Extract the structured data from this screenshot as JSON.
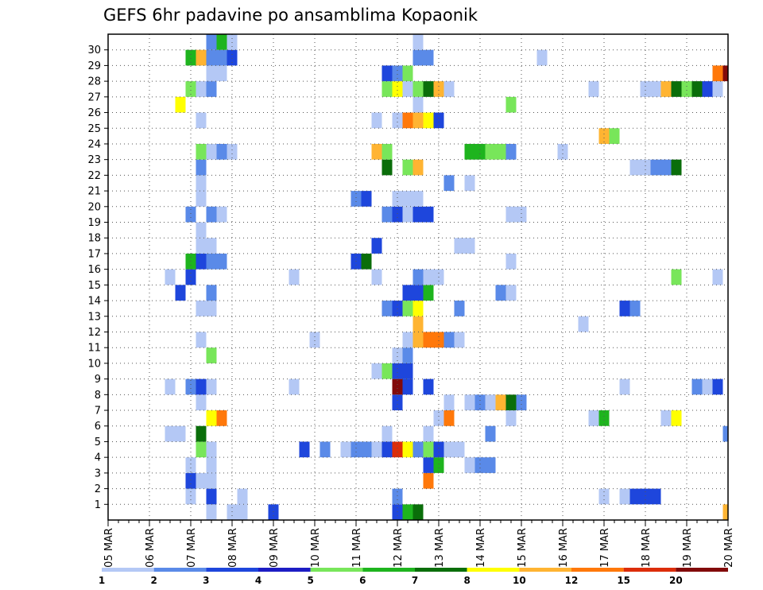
{
  "chart_data": {
    "type": "heatmap",
    "title": "GEFS 6hr padavine po ansamblima Kopaonik",
    "y_ticks": [
      1,
      2,
      3,
      4,
      5,
      6,
      7,
      8,
      9,
      10,
      11,
      12,
      13,
      14,
      15,
      16,
      17,
      18,
      19,
      20,
      21,
      22,
      23,
      24,
      25,
      26,
      27,
      28,
      29,
      30
    ],
    "x_ticks": [
      "05 MAR",
      "06 MAR",
      "07 MAR",
      "08 MAR",
      "09 MAR",
      "10 MAR",
      "11 MAR",
      "12 MAR",
      "13 MAR",
      "14 MAR",
      "15 MAR",
      "16 MAR",
      "17 MAR",
      "18 MAR",
      "19 MAR",
      "20 MAR"
    ],
    "x_range": [
      "05 MAR 00Z",
      "20 MAR 00Z"
    ],
    "y_range": [
      0,
      30
    ],
    "grid": true,
    "time_step_hours": 6,
    "colorbar": {
      "labels": [
        "1",
        "2",
        "3",
        "4",
        "5",
        "6",
        "7",
        "8",
        "10",
        "12",
        "15",
        "20"
      ],
      "colors": [
        "#b4c8f5",
        "#5a8ae8",
        "#1e46dc",
        "#1c1cc4",
        "#78e65a",
        "#1eb41e",
        "#0a6e0a",
        "#ffff00",
        "#ffb432",
        "#ff780a",
        "#dc2d0a",
        "#820a0a"
      ]
    },
    "cells": [
      {
        "t": "07 MAR 12Z",
        "m": 0,
        "c": 1
      },
      {
        "t": "08 MAR 00Z",
        "m": 0,
        "c": 1
      },
      {
        "t": "08 MAR 06Z",
        "m": 0,
        "c": 1
      },
      {
        "t": "09 MAR 00Z",
        "m": 0,
        "c": 3
      },
      {
        "t": "12 MAR 00Z",
        "m": 0,
        "c": 3
      },
      {
        "t": "12 MAR 06Z",
        "m": 0,
        "c": 6
      },
      {
        "t": "12 MAR 12Z",
        "m": 0,
        "c": 7
      },
      {
        "t": "20 MAR 00Z",
        "m": 0,
        "c": 9
      },
      {
        "t": "07 MAR 00Z",
        "m": 1,
        "c": 1
      },
      {
        "t": "07 MAR 12Z",
        "m": 1,
        "c": 3
      },
      {
        "t": "08 MAR 06Z",
        "m": 1,
        "c": 1
      },
      {
        "t": "12 MAR 00Z",
        "m": 1,
        "c": 2
      },
      {
        "t": "17 MAR 00Z",
        "m": 1,
        "c": 1
      },
      {
        "t": "17 MAR 12Z",
        "m": 1,
        "c": 1
      },
      {
        "t": "17 MAR 18Z",
        "m": 1,
        "c": 3
      },
      {
        "t": "18 MAR 00Z",
        "m": 1,
        "c": 3
      },
      {
        "t": "18 MAR 06Z",
        "m": 1,
        "c": 3
      },
      {
        "t": "07 MAR 00Z",
        "m": 2,
        "c": 3
      },
      {
        "t": "07 MAR 06Z",
        "m": 2,
        "c": 1
      },
      {
        "t": "07 MAR 12Z",
        "m": 2,
        "c": 1
      },
      {
        "t": "12 MAR 18Z",
        "m": 2,
        "c": 10
      },
      {
        "t": "07 MAR 00Z",
        "m": 3,
        "c": 1
      },
      {
        "t": "07 MAR 12Z",
        "m": 3,
        "c": 1
      },
      {
        "t": "12 MAR 18Z",
        "m": 3,
        "c": 3
      },
      {
        "t": "13 MAR 00Z",
        "m": 3,
        "c": 6
      },
      {
        "t": "13 MAR 18Z",
        "m": 3,
        "c": 1
      },
      {
        "t": "14 MAR 00Z",
        "m": 3,
        "c": 2
      },
      {
        "t": "14 MAR 06Z",
        "m": 3,
        "c": 2
      },
      {
        "t": "07 MAR 06Z",
        "m": 4,
        "c": 5
      },
      {
        "t": "07 MAR 12Z",
        "m": 4,
        "c": 1
      },
      {
        "t": "09 MAR 18Z",
        "m": 4,
        "c": 3
      },
      {
        "t": "10 MAR 06Z",
        "m": 4,
        "c": 2
      },
      {
        "t": "10 MAR 18Z",
        "m": 4,
        "c": 1
      },
      {
        "t": "11 MAR 00Z",
        "m": 4,
        "c": 2
      },
      {
        "t": "11 MAR 06Z",
        "m": 4,
        "c": 2
      },
      {
        "t": "11 MAR 12Z",
        "m": 4,
        "c": 1
      },
      {
        "t": "11 MAR 18Z",
        "m": 4,
        "c": 3
      },
      {
        "t": "12 MAR 00Z",
        "m": 4,
        "c": 11
      },
      {
        "t": "12 MAR 06Z",
        "m": 4,
        "c": 8
      },
      {
        "t": "12 MAR 12Z",
        "m": 4,
        "c": 2
      },
      {
        "t": "12 MAR 18Z",
        "m": 4,
        "c": 5
      },
      {
        "t": "13 MAR 00Z",
        "m": 4,
        "c": 3
      },
      {
        "t": "13 MAR 06Z",
        "m": 4,
        "c": 1
      },
      {
        "t": "13 MAR 12Z",
        "m": 4,
        "c": 1
      },
      {
        "t": "06 MAR 12Z",
        "m": 5,
        "c": 1
      },
      {
        "t": "06 MAR 18Z",
        "m": 5,
        "c": 1
      },
      {
        "t": "07 MAR 06Z",
        "m": 5,
        "c": 7
      },
      {
        "t": "11 MAR 18Z",
        "m": 5,
        "c": 1
      },
      {
        "t": "12 MAR 18Z",
        "m": 5,
        "c": 1
      },
      {
        "t": "14 MAR 06Z",
        "m": 5,
        "c": 2
      },
      {
        "t": "20 MAR 00Z",
        "m": 5,
        "c": 2
      },
      {
        "t": "07 MAR 12Z",
        "m": 6,
        "c": 8
      },
      {
        "t": "07 MAR 18Z",
        "m": 6,
        "c": 10
      },
      {
        "t": "13 MAR 00Z",
        "m": 6,
        "c": 1
      },
      {
        "t": "13 MAR 06Z",
        "m": 6,
        "c": 10
      },
      {
        "t": "14 MAR 18Z",
        "m": 6,
        "c": 1
      },
      {
        "t": "16 MAR 18Z",
        "m": 6,
        "c": 1
      },
      {
        "t": "17 MAR 00Z",
        "m": 6,
        "c": 6
      },
      {
        "t": "18 MAR 12Z",
        "m": 6,
        "c": 1
      },
      {
        "t": "18 MAR 18Z",
        "m": 6,
        "c": 8
      },
      {
        "t": "07 MAR 06Z",
        "m": 7,
        "c": 1
      },
      {
        "t": "12 MAR 00Z",
        "m": 7,
        "c": 3
      },
      {
        "t": "13 MAR 06Z",
        "m": 7,
        "c": 1
      },
      {
        "t": "13 MAR 18Z",
        "m": 7,
        "c": 1
      },
      {
        "t": "14 MAR 00Z",
        "m": 7,
        "c": 2
      },
      {
        "t": "14 MAR 06Z",
        "m": 7,
        "c": 1
      },
      {
        "t": "14 MAR 12Z",
        "m": 7,
        "c": 9
      },
      {
        "t": "14 MAR 18Z",
        "m": 7,
        "c": 7
      },
      {
        "t": "15 MAR 00Z",
        "m": 7,
        "c": 2
      },
      {
        "t": "06 MAR 12Z",
        "m": 8,
        "c": 1
      },
      {
        "t": "07 MAR 00Z",
        "m": 8,
        "c": 2
      },
      {
        "t": "07 MAR 06Z",
        "m": 8,
        "c": 3
      },
      {
        "t": "07 MAR 12Z",
        "m": 8,
        "c": 1
      },
      {
        "t": "09 MAR 12Z",
        "m": 8,
        "c": 1
      },
      {
        "t": "12 MAR 00Z",
        "m": 8,
        "c": 12
      },
      {
        "t": "12 MAR 06Z",
        "m": 8,
        "c": 3
      },
      {
        "t": "12 MAR 18Z",
        "m": 8,
        "c": 3
      },
      {
        "t": "17 MAR 12Z",
        "m": 8,
        "c": 1
      },
      {
        "t": "19 MAR 06Z",
        "m": 8,
        "c": 2
      },
      {
        "t": "19 MAR 12Z",
        "m": 8,
        "c": 1
      },
      {
        "t": "19 MAR 18Z",
        "m": 8,
        "c": 3
      },
      {
        "t": "11 MAR 12Z",
        "m": 9,
        "c": 1
      },
      {
        "t": "11 MAR 18Z",
        "m": 9,
        "c": 5
      },
      {
        "t": "12 MAR 00Z",
        "m": 9,
        "c": 3
      },
      {
        "t": "12 MAR 06Z",
        "m": 9,
        "c": 3
      },
      {
        "t": "07 MAR 12Z",
        "m": 10,
        "c": 5
      },
      {
        "t": "12 MAR 00Z",
        "m": 10,
        "c": 1
      },
      {
        "t": "12 MAR 06Z",
        "m": 10,
        "c": 2
      },
      {
        "t": "07 MAR 06Z",
        "m": 11,
        "c": 1
      },
      {
        "t": "10 MAR 00Z",
        "m": 11,
        "c": 1
      },
      {
        "t": "12 MAR 06Z",
        "m": 11,
        "c": 1
      },
      {
        "t": "12 MAR 12Z",
        "m": 11,
        "c": 9
      },
      {
        "t": "12 MAR 18Z",
        "m": 11,
        "c": 10
      },
      {
        "t": "13 MAR 00Z",
        "m": 11,
        "c": 10
      },
      {
        "t": "13 MAR 06Z",
        "m": 11,
        "c": 2
      },
      {
        "t": "13 MAR 12Z",
        "m": 11,
        "c": 1
      },
      {
        "t": "12 MAR 12Z",
        "m": 12,
        "c": 9
      },
      {
        "t": "16 MAR 12Z",
        "m": 12,
        "c": 1
      },
      {
        "t": "07 MAR 06Z",
        "m": 13,
        "c": 1
      },
      {
        "t": "07 MAR 12Z",
        "m": 13,
        "c": 1
      },
      {
        "t": "11 MAR 18Z",
        "m": 13,
        "c": 2
      },
      {
        "t": "12 MAR 00Z",
        "m": 13,
        "c": 3
      },
      {
        "t": "12 MAR 06Z",
        "m": 13,
        "c": 5
      },
      {
        "t": "12 MAR 12Z",
        "m": 13,
        "c": 8
      },
      {
        "t": "13 MAR 12Z",
        "m": 13,
        "c": 2
      },
      {
        "t": "17 MAR 12Z",
        "m": 13,
        "c": 3
      },
      {
        "t": "17 MAR 18Z",
        "m": 13,
        "c": 2
      },
      {
        "t": "06 MAR 18Z",
        "m": 14,
        "c": 3
      },
      {
        "t": "07 MAR 12Z",
        "m": 14,
        "c": 2
      },
      {
        "t": "12 MAR 06Z",
        "m": 14,
        "c": 3
      },
      {
        "t": "12 MAR 12Z",
        "m": 14,
        "c": 3
      },
      {
        "t": "12 MAR 18Z",
        "m": 14,
        "c": 6
      },
      {
        "t": "14 MAR 12Z",
        "m": 14,
        "c": 2
      },
      {
        "t": "14 MAR 18Z",
        "m": 14,
        "c": 1
      },
      {
        "t": "06 MAR 12Z",
        "m": 15,
        "c": 1
      },
      {
        "t": "07 MAR 00Z",
        "m": 15,
        "c": 3
      },
      {
        "t": "09 MAR 12Z",
        "m": 15,
        "c": 1
      },
      {
        "t": "11 MAR 12Z",
        "m": 15,
        "c": 1
      },
      {
        "t": "12 MAR 12Z",
        "m": 15,
        "c": 2
      },
      {
        "t": "12 MAR 18Z",
        "m": 15,
        "c": 1
      },
      {
        "t": "13 MAR 00Z",
        "m": 15,
        "c": 1
      },
      {
        "t": "18 MAR 18Z",
        "m": 15,
        "c": 5
      },
      {
        "t": "19 MAR 18Z",
        "m": 15,
        "c": 1
      },
      {
        "t": "07 MAR 00Z",
        "m": 16,
        "c": 6
      },
      {
        "t": "07 MAR 06Z",
        "m": 16,
        "c": 3
      },
      {
        "t": "07 MAR 12Z",
        "m": 16,
        "c": 2
      },
      {
        "t": "07 MAR 18Z",
        "m": 16,
        "c": 2
      },
      {
        "t": "11 MAR 00Z",
        "m": 16,
        "c": 3
      },
      {
        "t": "11 MAR 06Z",
        "m": 16,
        "c": 7
      },
      {
        "t": "14 MAR 18Z",
        "m": 16,
        "c": 1
      },
      {
        "t": "07 MAR 06Z",
        "m": 17,
        "c": 1
      },
      {
        "t": "07 MAR 12Z",
        "m": 17,
        "c": 1
      },
      {
        "t": "11 MAR 12Z",
        "m": 17,
        "c": 3
      },
      {
        "t": "13 MAR 12Z",
        "m": 17,
        "c": 1
      },
      {
        "t": "13 MAR 18Z",
        "m": 17,
        "c": 1
      },
      {
        "t": "07 MAR 06Z",
        "m": 18,
        "c": 1
      },
      {
        "t": "07 MAR 00Z",
        "m": 19,
        "c": 2
      },
      {
        "t": "07 MAR 12Z",
        "m": 19,
        "c": 2
      },
      {
        "t": "07 MAR 18Z",
        "m": 19,
        "c": 1
      },
      {
        "t": "11 MAR 18Z",
        "m": 19,
        "c": 2
      },
      {
        "t": "12 MAR 00Z",
        "m": 19,
        "c": 3
      },
      {
        "t": "12 MAR 06Z",
        "m": 19,
        "c": 1
      },
      {
        "t": "12 MAR 12Z",
        "m": 19,
        "c": 3
      },
      {
        "t": "12 MAR 18Z",
        "m": 19,
        "c": 3
      },
      {
        "t": "14 MAR 18Z",
        "m": 19,
        "c": 1
      },
      {
        "t": "15 MAR 00Z",
        "m": 19,
        "c": 1
      },
      {
        "t": "07 MAR 06Z",
        "m": 20,
        "c": 1
      },
      {
        "t": "11 MAR 00Z",
        "m": 20,
        "c": 2
      },
      {
        "t": "11 MAR 06Z",
        "m": 20,
        "c": 3
      },
      {
        "t": "12 MAR 00Z",
        "m": 20,
        "c": 1
      },
      {
        "t": "12 MAR 06Z",
        "m": 20,
        "c": 1
      },
      {
        "t": "12 MAR 12Z",
        "m": 20,
        "c": 1
      },
      {
        "t": "07 MAR 06Z",
        "m": 21,
        "c": 1
      },
      {
        "t": "13 MAR 06Z",
        "m": 21,
        "c": 2
      },
      {
        "t": "13 MAR 18Z",
        "m": 21,
        "c": 1
      },
      {
        "t": "07 MAR 06Z",
        "m": 22,
        "c": 2
      },
      {
        "t": "11 MAR 18Z",
        "m": 22,
        "c": 7
      },
      {
        "t": "12 MAR 06Z",
        "m": 22,
        "c": 5
      },
      {
        "t": "12 MAR 12Z",
        "m": 22,
        "c": 9
      },
      {
        "t": "17 MAR 18Z",
        "m": 22,
        "c": 1
      },
      {
        "t": "18 MAR 00Z",
        "m": 22,
        "c": 1
      },
      {
        "t": "18 MAR 06Z",
        "m": 22,
        "c": 2
      },
      {
        "t": "18 MAR 12Z",
        "m": 22,
        "c": 2
      },
      {
        "t": "18 MAR 18Z",
        "m": 22,
        "c": 7
      },
      {
        "t": "07 MAR 06Z",
        "m": 23,
        "c": 5
      },
      {
        "t": "07 MAR 12Z",
        "m": 23,
        "c": 1
      },
      {
        "t": "07 MAR 18Z",
        "m": 23,
        "c": 2
      },
      {
        "t": "08 MAR 00Z",
        "m": 23,
        "c": 1
      },
      {
        "t": "11 MAR 12Z",
        "m": 23,
        "c": 9
      },
      {
        "t": "11 MAR 18Z",
        "m": 23,
        "c": 5
      },
      {
        "t": "13 MAR 18Z",
        "m": 23,
        "c": 6
      },
      {
        "t": "14 MAR 00Z",
        "m": 23,
        "c": 6
      },
      {
        "t": "14 MAR 06Z",
        "m": 23,
        "c": 5
      },
      {
        "t": "14 MAR 12Z",
        "m": 23,
        "c": 5
      },
      {
        "t": "14 MAR 18Z",
        "m": 23,
        "c": 2
      },
      {
        "t": "16 MAR 00Z",
        "m": 23,
        "c": 1
      },
      {
        "t": "17 MAR 00Z",
        "m": 24,
        "c": 9
      },
      {
        "t": "17 MAR 06Z",
        "m": 24,
        "c": 5
      },
      {
        "t": "07 MAR 06Z",
        "m": 25,
        "c": 1
      },
      {
        "t": "11 MAR 12Z",
        "m": 25,
        "c": 1
      },
      {
        "t": "12 MAR 00Z",
        "m": 25,
        "c": 1
      },
      {
        "t": "12 MAR 06Z",
        "m": 25,
        "c": 10
      },
      {
        "t": "12 MAR 12Z",
        "m": 25,
        "c": 9
      },
      {
        "t": "12 MAR 18Z",
        "m": 25,
        "c": 8
      },
      {
        "t": "13 MAR 00Z",
        "m": 25,
        "c": 3
      },
      {
        "t": "06 MAR 18Z",
        "m": 26,
        "c": 8
      },
      {
        "t": "12 MAR 12Z",
        "m": 26,
        "c": 1
      },
      {
        "t": "14 MAR 18Z",
        "m": 26,
        "c": 5
      },
      {
        "t": "07 MAR 00Z",
        "m": 27,
        "c": 5
      },
      {
        "t": "07 MAR 06Z",
        "m": 27,
        "c": 1
      },
      {
        "t": "07 MAR 12Z",
        "m": 27,
        "c": 2
      },
      {
        "t": "11 MAR 18Z",
        "m": 27,
        "c": 5
      },
      {
        "t": "12 MAR 00Z",
        "m": 27,
        "c": 8
      },
      {
        "t": "12 MAR 06Z",
        "m": 27,
        "c": 1
      },
      {
        "t": "12 MAR 12Z",
        "m": 27,
        "c": 5
      },
      {
        "t": "12 MAR 18Z",
        "m": 27,
        "c": 7
      },
      {
        "t": "13 MAR 00Z",
        "m": 27,
        "c": 9
      },
      {
        "t": "13 MAR 06Z",
        "m": 27,
        "c": 1
      },
      {
        "t": "16 MAR 18Z",
        "m": 27,
        "c": 1
      },
      {
        "t": "18 MAR 00Z",
        "m": 27,
        "c": 1
      },
      {
        "t": "18 MAR 06Z",
        "m": 27,
        "c": 1
      },
      {
        "t": "18 MAR 12Z",
        "m": 27,
        "c": 9
      },
      {
        "t": "18 MAR 18Z",
        "m": 27,
        "c": 7
      },
      {
        "t": "19 MAR 00Z",
        "m": 27,
        "c": 5
      },
      {
        "t": "19 MAR 06Z",
        "m": 27,
        "c": 7
      },
      {
        "t": "19 MAR 12Z",
        "m": 27,
        "c": 3
      },
      {
        "t": "19 MAR 18Z",
        "m": 27,
        "c": 1
      },
      {
        "t": "07 MAR 12Z",
        "m": 28,
        "c": 1
      },
      {
        "t": "07 MAR 18Z",
        "m": 28,
        "c": 1
      },
      {
        "t": "11 MAR 18Z",
        "m": 28,
        "c": 3
      },
      {
        "t": "12 MAR 00Z",
        "m": 28,
        "c": 2
      },
      {
        "t": "12 MAR 06Z",
        "m": 28,
        "c": 5
      },
      {
        "t": "19 MAR 18Z",
        "m": 28,
        "c": 10
      },
      {
        "t": "20 MAR 00Z",
        "m": 28,
        "c": 12
      },
      {
        "t": "07 MAR 00Z",
        "m": 29,
        "c": 6
      },
      {
        "t": "07 MAR 06Z",
        "m": 29,
        "c": 9
      },
      {
        "t": "07 MAR 12Z",
        "m": 29,
        "c": 2
      },
      {
        "t": "07 MAR 18Z",
        "m": 29,
        "c": 2
      },
      {
        "t": "08 MAR 00Z",
        "m": 29,
        "c": 3
      },
      {
        "t": "12 MAR 12Z",
        "m": 29,
        "c": 2
      },
      {
        "t": "12 MAR 18Z",
        "m": 29,
        "c": 2
      },
      {
        "t": "15 MAR 12Z",
        "m": 29,
        "c": 1
      },
      {
        "t": "07 MAR 12Z",
        "m": 30,
        "c": 2
      },
      {
        "t": "07 MAR 18Z",
        "m": 30,
        "c": 6
      },
      {
        "t": "08 MAR 00Z",
        "m": 30,
        "c": 1
      },
      {
        "t": "12 MAR 12Z",
        "m": 30,
        "c": 1
      }
    ]
  }
}
